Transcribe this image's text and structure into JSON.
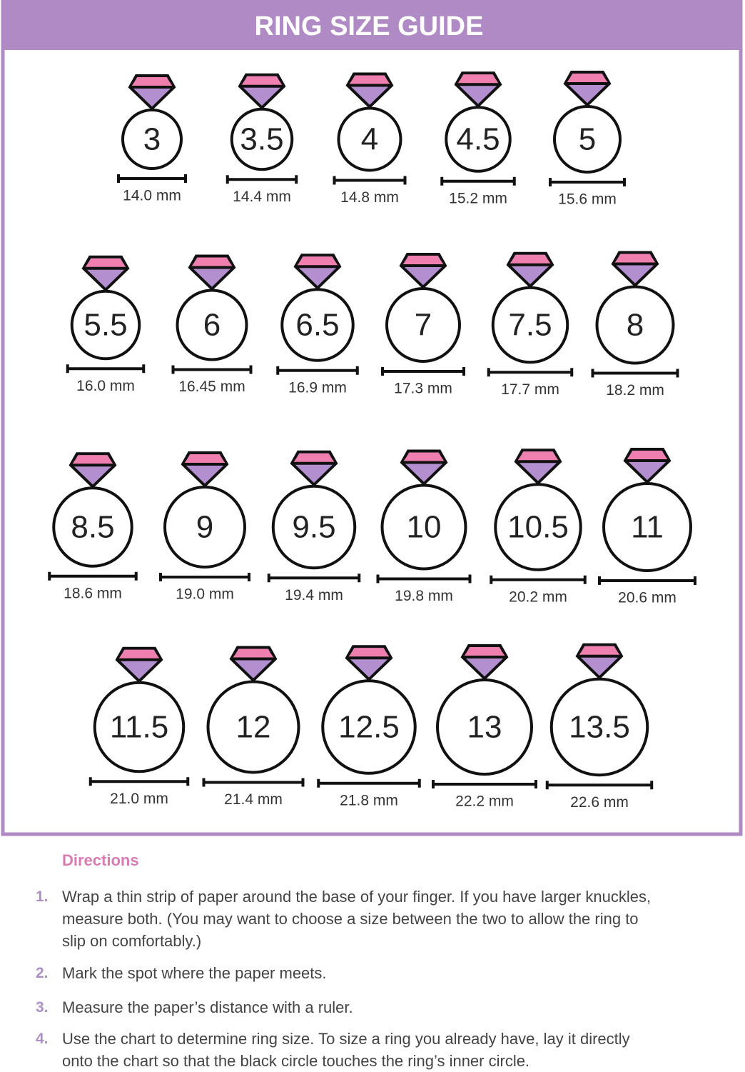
{
  "header": {
    "title": "RING SIZE GUIDE"
  },
  "rings": [
    {
      "size": "3",
      "diameter": "14.0 mm"
    },
    {
      "size": "3.5",
      "diameter": "14.4 mm"
    },
    {
      "size": "4",
      "diameter": "14.8 mm"
    },
    {
      "size": "4.5",
      "diameter": "15.2 mm"
    },
    {
      "size": "5",
      "diameter": "15.6 mm"
    },
    {
      "size": "5.5",
      "diameter": "16.0 mm"
    },
    {
      "size": "6",
      "diameter": "16.45 mm"
    },
    {
      "size": "6.5",
      "diameter": "16.9 mm"
    },
    {
      "size": "7",
      "diameter": "17.3 mm"
    },
    {
      "size": "7.5",
      "diameter": "17.7 mm"
    },
    {
      "size": "8",
      "diameter": "18.2 mm"
    },
    {
      "size": "8.5",
      "diameter": "18.6 mm"
    },
    {
      "size": "9",
      "diameter": "19.0 mm"
    },
    {
      "size": "9.5",
      "diameter": "19.4 mm"
    },
    {
      "size": "10",
      "diameter": "19.8 mm"
    },
    {
      "size": "10.5",
      "diameter": "20.2 mm"
    },
    {
      "size": "11",
      "diameter": "20.6 mm"
    },
    {
      "size": "11.5",
      "diameter": "21.0 mm"
    },
    {
      "size": "12",
      "diameter": "21.4 mm"
    },
    {
      "size": "12.5",
      "diameter": "21.8 mm"
    },
    {
      "size": "13",
      "diameter": "22.2 mm"
    },
    {
      "size": "13.5",
      "diameter": "22.6 mm"
    }
  ],
  "directions": {
    "title": "Directions",
    "steps": [
      {
        "number": "1.",
        "text": "Wrap a thin strip of paper around the base of your finger. If you have larger knuckles, measure both. (You may want to choose a size between the two to allow the ring to slip on comfortably.)"
      },
      {
        "number": "2.",
        "text": "Mark the spot where the paper meets."
      },
      {
        "number": "3.",
        "text": "Measure the paper’s distance with a ruler."
      },
      {
        "number": "4.",
        "text": "Use the chart to determine ring size. To size a ring you already have, lay it directly onto the chart so that the black circle touches the ring’s inner circle."
      }
    ]
  }
}
